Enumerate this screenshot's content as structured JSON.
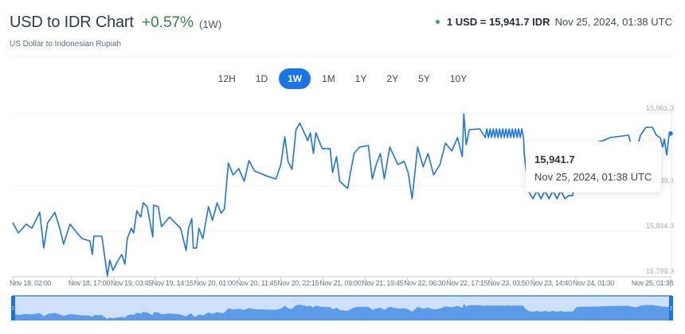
{
  "header": {
    "title": "USD to IDR Chart",
    "change": "+0.57%",
    "period": "(1W)",
    "subtitle": "US Dollar to Indonesian Rupiah",
    "rate": "1 USD = 15,941.7 IDR",
    "timestamp": "Nov 25, 2024, 01:38 UTC",
    "status_color": "#2fb344",
    "change_color": "#2e8540"
  },
  "ranges": [
    {
      "label": "12H",
      "active": false
    },
    {
      "label": "1D",
      "active": false
    },
    {
      "label": "1W",
      "active": true
    },
    {
      "label": "1M",
      "active": false
    },
    {
      "label": "1Y",
      "active": false
    },
    {
      "label": "2Y",
      "active": false
    },
    {
      "label": "5Y",
      "active": false
    },
    {
      "label": "10Y",
      "active": false
    }
  ],
  "tooltip": {
    "value": "15,941.7",
    "date": "Nov 25, 2024, 01:38 UTC"
  },
  "chart_data": {
    "type": "line",
    "title": "",
    "xlabel": "",
    "ylabel": "",
    "line_color": "#1a73e8",
    "navigator_fill": "#5b9be8",
    "navigator_bg": "#cfe1f8",
    "x_range": [
      "11-18 02:00",
      "11-25 01:38"
    ],
    "ylim": [
      15799.3,
      15961.3
    ],
    "y_ticks": [
      {
        "value": 15961.3,
        "label": "15,961.3"
      },
      {
        "value": 15889.3,
        "label": "15,889.3"
      },
      {
        "value": 15844.3,
        "label": "15,844.3"
      },
      {
        "value": 15799.3,
        "label": "15,799.3"
      }
    ],
    "x_ticks": [
      {
        "t": "11-18 02:00",
        "label": "Nov 18, 02:00"
      },
      {
        "t": "11-18 17:00",
        "label": "Nov 18, 17:00"
      },
      {
        "t": "11-19 03:45",
        "label": "Nov 19, 03:45"
      },
      {
        "t": "11-19 14:15",
        "label": "Nov 19, 14:15"
      },
      {
        "t": "11-20 01:00",
        "label": "Nov 20, 01:00"
      },
      {
        "t": "11-20 11:45",
        "label": "Nov 20, 11:45"
      },
      {
        "t": "11-20 22:15",
        "label": "Nov 20, 22:15"
      },
      {
        "t": "11-21 09:00",
        "label": "Nov 21, 09:00"
      },
      {
        "t": "11-21 19:45",
        "label": "Nov 21, 19:45"
      },
      {
        "t": "11-22 06:30",
        "label": "Nov 22, 06:30"
      },
      {
        "t": "11-22 17:15",
        "label": "Nov 22, 17:15"
      },
      {
        "t": "11-23 03:50",
        "label": "Nov 23, 03:50"
      },
      {
        "t": "11-23 14:40",
        "label": "Nov 23, 14:40"
      },
      {
        "t": "11-24 01:30",
        "label": "Nov 24, 01:30"
      },
      {
        "t": "11-25 01:38",
        "label": "Nov 25, 01:38"
      }
    ],
    "grid": true,
    "points": [
      [
        "11-18 02:00",
        15853.1
      ],
      [
        "11-18 03:25",
        15842.8
      ],
      [
        "11-18 05:27",
        15851.5
      ],
      [
        "11-18 06:52",
        15847.5
      ],
      [
        "11-18 08:53",
        15863.3
      ],
      [
        "11-18 09:54",
        15827.8
      ],
      [
        "11-18 10:55",
        15853.1
      ],
      [
        "11-18 12:44",
        15863.3
      ],
      [
        "11-18 13:58",
        15847.5
      ],
      [
        "11-18 14:58",
        15831.7
      ],
      [
        "11-18 16:36",
        15851.5
      ],
      [
        "11-18 18:25",
        15842.8
      ],
      [
        "11-18 19:38",
        15837.2
      ],
      [
        "11-18 21:40",
        15834.9
      ],
      [
        "11-18 22:16",
        15821.4
      ],
      [
        "11-18 22:41",
        15839.6
      ],
      [
        "11-19 00:42",
        15839.6
      ],
      [
        "11-19 02:07",
        15800.1
      ],
      [
        "11-19 02:44",
        15815.9
      ],
      [
        "11-19 03:32",
        15805.6
      ],
      [
        "11-19 04:33",
        15813.5
      ],
      [
        "11-19 05:46",
        15821.4
      ],
      [
        "11-19 06:35",
        15811.9
      ],
      [
        "11-19 07:11",
        15837.2
      ],
      [
        "11-19 08:12",
        15847.5
      ],
      [
        "11-19 08:49",
        15842.8
      ],
      [
        "11-19 09:37",
        15864.9
      ],
      [
        "11-19 10:38",
        15858.6
      ],
      [
        "11-19 11:14",
        15872.8
      ],
      [
        "11-19 12:16",
        15868.9
      ],
      [
        "11-19 13:41",
        15838.8
      ],
      [
        "11-19 13:53",
        15870.4
      ],
      [
        "11-19 15:05",
        15868.9
      ],
      [
        "11-19 15:54",
        15849.1
      ],
      [
        "11-19 17:56",
        15858.6
      ],
      [
        "11-19 20:46",
        15847.5
      ],
      [
        "11-19 22:11",
        15825.4
      ],
      [
        "11-19 22:48",
        15847.5
      ],
      [
        "11-19 23:37",
        15857.0
      ],
      [
        "11-20 00:01",
        15827.8
      ],
      [
        "11-20 00:49",
        15827.8
      ],
      [
        "11-20 01:26",
        15847.5
      ],
      [
        "11-20 02:27",
        15837.2
      ],
      [
        "11-20 03:52",
        15868.9
      ],
      [
        "11-20 04:53",
        15855.4
      ],
      [
        "11-20 06:05",
        15872.8
      ],
      [
        "11-20 07:07",
        15862.5
      ],
      [
        "11-20 07:55",
        15866.5
      ],
      [
        "11-20 08:56",
        15912.3
      ],
      [
        "11-20 10:09",
        15900.5
      ],
      [
        "11-20 11:34",
        15906.8
      ],
      [
        "11-20 12:59",
        15894.2
      ],
      [
        "11-20 14:12",
        15914.7
      ],
      [
        "11-20 15:37",
        15904.4
      ],
      [
        "11-20 19:04",
        15898.9
      ],
      [
        "11-20 21:05",
        15896.5
      ],
      [
        "11-20 22:19",
        15910.8
      ],
      [
        "11-20 23:19",
        15938.4
      ],
      [
        "11-21 00:08",
        15913.9
      ],
      [
        "11-21 01:09",
        15906.0
      ],
      [
        "11-21 02:10",
        15945.5
      ],
      [
        "11-21 03:10",
        15951.9
      ],
      [
        "11-21 05:12",
        15934.5
      ],
      [
        "11-21 05:49",
        15942.4
      ],
      [
        "11-21 06:37",
        15921.8
      ],
      [
        "11-21 07:14",
        15942.4
      ],
      [
        "11-21 08:51",
        15926.6
      ],
      [
        "11-21 10:53",
        15926.6
      ],
      [
        "11-21 11:29",
        15902.9
      ],
      [
        "11-21 12:30",
        15918.7
      ],
      [
        "11-21 13:19",
        15894.2
      ],
      [
        "11-21 15:20",
        15887.0
      ],
      [
        "11-21 15:57",
        15900.5
      ],
      [
        "11-21 16:58",
        15921.8
      ],
      [
        "11-21 18:23",
        15928.2
      ],
      [
        "11-21 20:37",
        15929.7
      ],
      [
        "11-21 21:37",
        15896.5
      ],
      [
        "11-21 22:38",
        15910.8
      ],
      [
        "11-21 23:39",
        15921.8
      ],
      [
        "11-22 00:40",
        15896.5
      ],
      [
        "11-22 02:05",
        15928.2
      ],
      [
        "11-22 04:07",
        15910.8
      ],
      [
        "11-22 05:44",
        15913.9
      ],
      [
        "11-22 06:44",
        15902.9
      ],
      [
        "11-22 07:46",
        15876.8
      ],
      [
        "11-22 09:10",
        15928.2
      ],
      [
        "11-22 10:35",
        15908.4
      ],
      [
        "11-22 11:49",
        15921.8
      ],
      [
        "11-22 13:14",
        15900.5
      ],
      [
        "11-22 14:51",
        15910.8
      ],
      [
        "11-22 16:16",
        15932.1
      ],
      [
        "11-22 17:53",
        15924.2
      ],
      [
        "11-22 19:19",
        15937.6
      ],
      [
        "11-22 20:32",
        15918.7
      ],
      [
        "11-22 20:56",
        15961.3
      ],
      [
        "11-22 21:32",
        15930.5
      ],
      [
        "11-22 22:21",
        15945.5
      ],
      [
        "11-23 00:59",
        15946.3
      ],
      [
        "11-23 02:24",
        15937.6
      ],
      [
        "11-23 02:48",
        15946.3
      ],
      [
        "11-23 03:13",
        15937.6
      ],
      [
        "11-23 03:37",
        15946.3
      ],
      [
        "11-23 04:01",
        15937.6
      ],
      [
        "11-23 04:26",
        15946.3
      ],
      [
        "11-23 04:50",
        15937.6
      ],
      [
        "11-23 05:14",
        15946.3
      ],
      [
        "11-23 05:38",
        15937.6
      ],
      [
        "11-23 06:03",
        15946.3
      ],
      [
        "11-23 06:27",
        15937.6
      ],
      [
        "11-23 06:51",
        15946.3
      ],
      [
        "11-23 07:16",
        15937.6
      ],
      [
        "11-23 07:40",
        15946.3
      ],
      [
        "11-23 08:04",
        15937.6
      ],
      [
        "11-23 08:29",
        15946.3
      ],
      [
        "11-23 08:53",
        15937.6
      ],
      [
        "11-23 09:17",
        15946.3
      ],
      [
        "11-23 09:41",
        15937.6
      ],
      [
        "11-23 10:06",
        15946.3
      ],
      [
        "11-23 10:30",
        15937.6
      ],
      [
        "11-23 10:54",
        15946.3
      ],
      [
        "11-23 11:19",
        15937.6
      ],
      [
        "11-23 11:43",
        15946.3
      ],
      [
        "11-23 12:08",
        15937.6
      ],
      [
        "11-23 12:20",
        15921.8
      ],
      [
        "11-23 13:21",
        15884.7
      ],
      [
        "11-23 14:34",
        15876.8
      ],
      [
        "11-23 15:35",
        15884.7
      ],
      [
        "11-23 16:36",
        15876.8
      ],
      [
        "11-23 17:37",
        15884.7
      ],
      [
        "11-23 18:37",
        15876.8
      ],
      [
        "11-23 19:38",
        15884.7
      ],
      [
        "11-23 20:39",
        15876.8
      ],
      [
        "11-23 21:40",
        15884.7
      ],
      [
        "11-23 22:41",
        15876.8
      ],
      [
        "11-23 23:41",
        15880.0
      ],
      [
        "11-24 00:42",
        15880.0
      ],
      [
        "11-24 01:43",
        15928.2
      ],
      [
        "11-24 08:24",
        15934.5
      ],
      [
        "11-24 10:14",
        15937.6
      ],
      [
        "11-24 14:54",
        15940.0
      ],
      [
        "11-24 15:18",
        15933.7
      ],
      [
        "11-24 16:55",
        15924.2
      ],
      [
        "11-24 17:56",
        15940.0
      ],
      [
        "11-24 19:21",
        15947.9
      ],
      [
        "11-24 20:58",
        15947.9
      ],
      [
        "11-24 21:59",
        15940.0
      ],
      [
        "11-24 22:59",
        15937.6
      ],
      [
        "11-24 23:36",
        15928.2
      ],
      [
        "11-25 00:01",
        15936.1
      ],
      [
        "11-25 00:37",
        15920.3
      ],
      [
        "11-25 01:14",
        15940.0
      ],
      [
        "11-25 01:38",
        15941.7
      ]
    ]
  }
}
